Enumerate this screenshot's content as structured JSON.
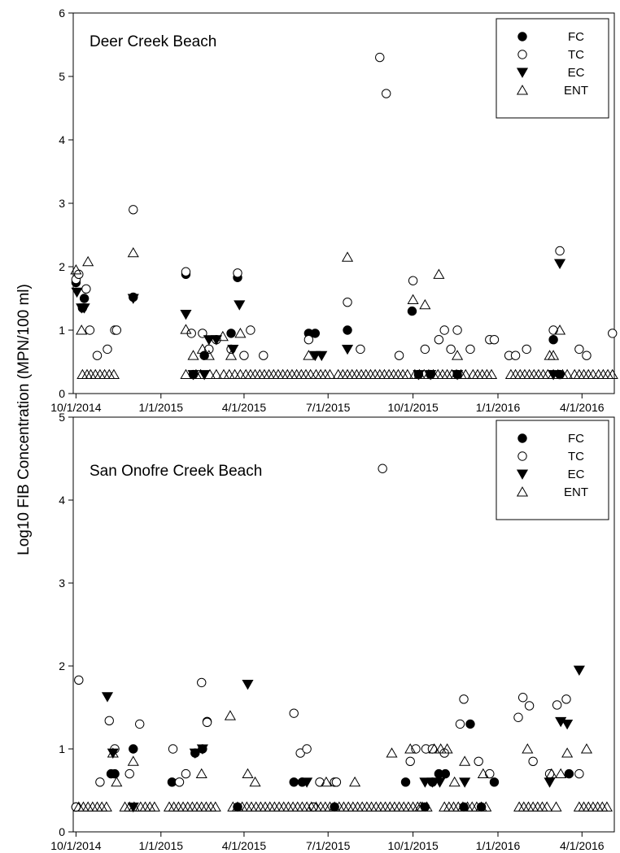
{
  "figure": {
    "ylabel": "Log10 FIB Concentration (MPN/100 ml)"
  },
  "chart_data": [
    {
      "type": "scatter",
      "title": "Deer Creek Beach",
      "xlabel": "",
      "ylabel": "Log10 FIB Concentration (MPN/100 ml)",
      "xlim": [
        "2014-09-28",
        "2016-05-06"
      ],
      "ylim": [
        0,
        6
      ],
      "x_ticks": [
        "10/1/2014",
        "1/1/2015",
        "4/1/2015",
        "7/1/2015",
        "10/1/2015",
        "1/1/2016",
        "4/1/2016"
      ],
      "y_ticks": [
        0,
        1,
        2,
        3,
        4,
        5,
        6
      ],
      "legend_position": "top-right",
      "series": [
        {
          "name": "FC",
          "marker": "filled-circle",
          "x": [
            "2014-10-01",
            "2014-10-08",
            "2014-10-10",
            "2014-12-02",
            "2015-01-28",
            "2015-02-05",
            "2015-02-17",
            "2015-03-18",
            "2015-03-25",
            "2015-06-10",
            "2015-06-17",
            "2015-07-22",
            "2015-09-30",
            "2015-10-07",
            "2015-10-20",
            "2015-11-18",
            "2016-03-01",
            "2016-03-08"
          ],
          "y": [
            1.75,
            1.35,
            1.5,
            1.52,
            1.88,
            0.3,
            0.6,
            0.95,
            1.83,
            0.95,
            0.95,
            1.0,
            1.3,
            0.3,
            0.3,
            0.3,
            0.85,
            0.3
          ]
        },
        {
          "name": "TC",
          "marker": "open-circle",
          "x": [
            "2014-10-01",
            "2014-10-04",
            "2014-10-12",
            "2014-10-16",
            "2014-10-24",
            "2014-11-04",
            "2014-11-12",
            "2014-11-14",
            "2014-12-02",
            "2015-01-28",
            "2015-02-03",
            "2015-02-15",
            "2015-02-22",
            "2015-03-02",
            "2015-03-18",
            "2015-03-25",
            "2015-04-01",
            "2015-04-08",
            "2015-04-22",
            "2015-06-10",
            "2015-07-22",
            "2015-08-05",
            "2015-08-26",
            "2015-09-02",
            "2015-09-16",
            "2015-10-01",
            "2015-10-14",
            "2015-10-29",
            "2015-11-04",
            "2015-11-11",
            "2015-11-18",
            "2015-12-02",
            "2015-12-23",
            "2015-12-28",
            "2016-01-13",
            "2016-01-20",
            "2016-02-01",
            "2016-03-01",
            "2016-03-08",
            "2016-03-29",
            "2016-04-06",
            "2016-05-04"
          ],
          "y": [
            1.8,
            1.88,
            1.65,
            1.0,
            0.6,
            0.7,
            1.0,
            1.0,
            2.9,
            1.92,
            0.95,
            0.95,
            0.7,
            0.85,
            0.7,
            1.9,
            0.6,
            1.0,
            0.6,
            0.85,
            1.44,
            0.7,
            5.3,
            4.73,
            0.6,
            1.78,
            0.7,
            0.85,
            1.0,
            0.7,
            1.0,
            0.7,
            0.85,
            0.85,
            0.6,
            0.6,
            0.7,
            1.0,
            2.25,
            0.7,
            0.6,
            0.95
          ]
        },
        {
          "name": "EC",
          "marker": "filled-triangle-down",
          "x": [
            "2014-10-02",
            "2014-10-07",
            "2014-10-10",
            "2014-12-02",
            "2015-01-28",
            "2015-02-05",
            "2015-02-17",
            "2015-02-22",
            "2015-03-02",
            "2015-03-20",
            "2015-03-27",
            "2015-06-17",
            "2015-06-24",
            "2015-07-22",
            "2015-10-07",
            "2015-10-20",
            "2015-11-18",
            "2016-03-01",
            "2016-03-08"
          ],
          "y": [
            1.6,
            1.35,
            1.35,
            1.5,
            1.25,
            0.3,
            0.3,
            0.85,
            0.85,
            0.7,
            1.4,
            0.6,
            0.6,
            0.7,
            0.3,
            0.3,
            0.3,
            0.3,
            2.05
          ]
        },
        {
          "name": "ENT",
          "marker": "open-triangle-up",
          "x": [
            "2014-10-01",
            "2014-10-07",
            "2014-10-14",
            "2014-12-02",
            "2015-01-28",
            "2015-02-05",
            "2015-02-15",
            "2015-02-22",
            "2015-03-09",
            "2015-03-18",
            "2015-03-28",
            "2015-06-10",
            "2015-07-22",
            "2015-10-01",
            "2015-10-14",
            "2015-10-29",
            "2015-11-18",
            "2016-02-26",
            "2016-03-01",
            "2016-03-08"
          ],
          "y": [
            1.95,
            1.0,
            2.08,
            2.22,
            1.01,
            0.6,
            0.7,
            0.6,
            0.9,
            0.6,
            0.95,
            0.6,
            2.15,
            1.48,
            1.4,
            1.88,
            0.6,
            0.6,
            0.6,
            1.0
          ]
        },
        {
          "name": "",
          "marker": "open-triangle-up",
          "note": "baseline detection-limit samples (all indicators)",
          "x": [
            "2014-10-08",
            "2014-10-13",
            "2014-10-17",
            "2014-10-22",
            "2014-10-27",
            "2014-11-01",
            "2014-11-06",
            "2014-11-11",
            "2015-01-28",
            "2015-02-08",
            "2015-02-13",
            "2015-02-23",
            "2015-03-02",
            "2015-03-10",
            "2015-03-16",
            "2015-03-22",
            "2015-03-28",
            "2015-04-03",
            "2015-04-08",
            "2015-04-13",
            "2015-04-18",
            "2015-04-23",
            "2015-04-28",
            "2015-05-03",
            "2015-05-08",
            "2015-05-13",
            "2015-05-18",
            "2015-05-23",
            "2015-05-28",
            "2015-06-02",
            "2015-06-07",
            "2015-06-12",
            "2015-06-18",
            "2015-06-23",
            "2015-06-28",
            "2015-07-03",
            "2015-07-12",
            "2015-07-17",
            "2015-07-22",
            "2015-07-27",
            "2015-08-01",
            "2015-08-06",
            "2015-08-11",
            "2015-08-16",
            "2015-08-21",
            "2015-08-26",
            "2015-08-31",
            "2015-09-05",
            "2015-09-10",
            "2015-09-15",
            "2015-09-20",
            "2015-09-25",
            "2015-10-03",
            "2015-10-08",
            "2015-10-13",
            "2015-10-18",
            "2015-10-23",
            "2015-10-28",
            "2015-11-02",
            "2015-11-07",
            "2015-11-12",
            "2015-11-17",
            "2015-11-22",
            "2015-11-27",
            "2015-12-05",
            "2015-12-10",
            "2015-12-15",
            "2015-12-20",
            "2015-12-25",
            "2016-01-15",
            "2016-01-20",
            "2016-01-25",
            "2016-01-30",
            "2016-02-04",
            "2016-02-09",
            "2016-02-14",
            "2016-02-19",
            "2016-02-24",
            "2016-03-01",
            "2016-03-06",
            "2016-03-11",
            "2016-03-16",
            "2016-03-24",
            "2016-03-29",
            "2016-04-03",
            "2016-04-08",
            "2016-04-13",
            "2016-04-19",
            "2016-04-24",
            "2016-04-29",
            "2016-05-04"
          ],
          "y": [
            0.3,
            0.3,
            0.3,
            0.3,
            0.3,
            0.3,
            0.3,
            0.3,
            0.3,
            0.3,
            0.3,
            0.3,
            0.3,
            0.3,
            0.3,
            0.3,
            0.3,
            0.3,
            0.3,
            0.3,
            0.3,
            0.3,
            0.3,
            0.3,
            0.3,
            0.3,
            0.3,
            0.3,
            0.3,
            0.3,
            0.3,
            0.3,
            0.3,
            0.3,
            0.3,
            0.3,
            0.3,
            0.3,
            0.3,
            0.3,
            0.3,
            0.3,
            0.3,
            0.3,
            0.3,
            0.3,
            0.3,
            0.3,
            0.3,
            0.3,
            0.3,
            0.3,
            0.3,
            0.3,
            0.3,
            0.3,
            0.3,
            0.3,
            0.3,
            0.3,
            0.3,
            0.3,
            0.3,
            0.3,
            0.3,
            0.3,
            0.3,
            0.3,
            0.3,
            0.3,
            0.3,
            0.3,
            0.3,
            0.3,
            0.3,
            0.3,
            0.3,
            0.3,
            0.3,
            0.3,
            0.3,
            0.3,
            0.3,
            0.3,
            0.3,
            0.3,
            0.3,
            0.3,
            0.3,
            0.3,
            0.3
          ]
        }
      ]
    },
    {
      "type": "scatter",
      "title": "San Onofre Creek Beach",
      "xlabel": "",
      "ylabel": "Log10 FIB Concentration (MPN/100 ml)",
      "xlim": [
        "2014-09-28",
        "2016-05-06"
      ],
      "ylim": [
        0,
        5
      ],
      "x_ticks": [
        "10/1/2014",
        "1/1/2015",
        "4/1/2015",
        "7/1/2015",
        "10/1/2015",
        "1/1/2016",
        "4/1/2016"
      ],
      "y_ticks": [
        0,
        1,
        2,
        3,
        4,
        5
      ],
      "legend_position": "top-right",
      "series": [
        {
          "name": "FC",
          "marker": "filled-circle",
          "x": [
            "2014-10-01",
            "2014-11-08",
            "2014-11-12",
            "2014-12-02",
            "2015-01-13",
            "2015-02-07",
            "2015-02-15",
            "2015-02-20",
            "2015-03-25",
            "2015-05-25",
            "2015-06-03",
            "2015-07-08",
            "2015-09-23",
            "2015-10-14",
            "2015-10-22",
            "2015-10-29",
            "2015-11-05",
            "2015-11-25",
            "2015-12-02",
            "2015-12-14",
            "2015-12-28",
            "2016-03-18"
          ],
          "y": [
            0.3,
            0.7,
            0.7,
            1.0,
            0.6,
            0.95,
            1.0,
            1.33,
            0.3,
            0.6,
            0.6,
            0.3,
            0.6,
            0.3,
            0.6,
            0.7,
            0.7,
            0.3,
            1.3,
            0.3,
            0.6,
            0.7
          ]
        },
        {
          "name": "TC",
          "marker": "open-circle",
          "x": [
            "2014-10-01",
            "2014-10-04",
            "2014-10-27",
            "2014-11-06",
            "2014-11-12",
            "2014-11-28",
            "2014-12-09",
            "2015-01-14",
            "2015-01-21",
            "2015-01-28",
            "2015-02-14",
            "2015-02-20",
            "2015-05-25",
            "2015-06-01",
            "2015-06-08",
            "2015-06-15",
            "2015-06-22",
            "2015-07-08",
            "2015-07-10",
            "2015-08-29",
            "2015-09-28",
            "2015-10-04",
            "2015-10-15",
            "2015-10-22",
            "2015-11-04",
            "2015-11-21",
            "2015-11-25",
            "2015-12-11",
            "2015-12-23",
            "2016-01-23",
            "2016-01-28",
            "2016-02-04",
            "2016-02-08",
            "2016-02-26",
            "2016-03-05",
            "2016-03-15",
            "2016-03-29"
          ],
          "y": [
            0.3,
            1.83,
            0.6,
            1.34,
            1.0,
            0.7,
            1.3,
            1.0,
            0.6,
            0.7,
            1.8,
            1.32,
            1.43,
            0.95,
            1.0,
            0.3,
            0.6,
            0.6,
            0.6,
            4.38,
            0.85,
            1.0,
            1.0,
            1.0,
            0.95,
            1.3,
            1.6,
            0.85,
            0.7,
            1.38,
            1.62,
            1.52,
            0.85,
            0.7,
            1.53,
            1.6,
            0.7
          ]
        },
        {
          "name": "EC",
          "marker": "filled-triangle-down",
          "x": [
            "2014-11-04",
            "2014-11-10",
            "2014-12-02",
            "2015-02-07",
            "2015-02-15",
            "2015-04-05",
            "2015-06-08",
            "2015-10-14",
            "2015-10-22",
            "2015-10-30",
            "2015-11-26",
            "2016-02-26",
            "2016-03-09",
            "2016-03-16",
            "2016-03-29"
          ],
          "y": [
            1.63,
            0.95,
            0.3,
            0.95,
            1.0,
            1.78,
            0.6,
            0.6,
            0.6,
            0.6,
            0.6,
            0.6,
            1.33,
            1.3,
            1.95
          ]
        },
        {
          "name": "ENT",
          "marker": "open-triangle-up",
          "x": [
            "2014-11-10",
            "2014-11-14",
            "2014-12-02",
            "2015-02-14",
            "2015-03-17",
            "2015-04-05",
            "2015-04-13",
            "2015-06-29",
            "2015-07-30",
            "2015-09-08",
            "2015-09-28",
            "2015-10-09",
            "2015-10-24",
            "2015-10-31",
            "2015-11-07",
            "2015-11-15",
            "2015-11-26",
            "2015-12-16",
            "2016-02-02",
            "2016-02-28",
            "2016-03-09",
            "2016-03-16",
            "2016-04-06"
          ],
          "y": [
            0.95,
            0.6,
            0.85,
            0.7,
            1.4,
            0.7,
            0.6,
            0.6,
            0.6,
            0.95,
            1.0,
            0.3,
            1.0,
            1.0,
            1.0,
            0.6,
            0.85,
            0.7,
            1.0,
            0.7,
            0.7,
            0.95,
            1.0
          ]
        },
        {
          "name": "",
          "marker": "open-triangle-up",
          "note": "baseline detection-limit samples (all indicators)",
          "x": [
            "2014-10-04",
            "2014-10-09",
            "2014-10-14",
            "2014-10-19",
            "2014-10-24",
            "2014-10-29",
            "2014-11-03",
            "2014-11-23",
            "2014-11-28",
            "2014-12-03",
            "2014-12-10",
            "2014-12-15",
            "2014-12-20",
            "2014-12-25",
            "2015-01-10",
            "2015-01-15",
            "2015-01-20",
            "2015-01-25",
            "2015-01-30",
            "2015-02-04",
            "2015-02-09",
            "2015-02-14",
            "2015-02-19",
            "2015-02-24",
            "2015-03-01",
            "2015-03-20",
            "2015-03-25",
            "2015-03-30",
            "2015-04-04",
            "2015-04-09",
            "2015-04-14",
            "2015-04-19",
            "2015-04-24",
            "2015-04-29",
            "2015-05-04",
            "2015-05-09",
            "2015-05-14",
            "2015-05-19",
            "2015-05-24",
            "2015-05-29",
            "2015-06-03",
            "2015-06-08",
            "2015-06-13",
            "2015-06-18",
            "2015-06-23",
            "2015-06-28",
            "2015-07-03",
            "2015-07-08",
            "2015-07-13",
            "2015-07-18",
            "2015-07-23",
            "2015-07-28",
            "2015-08-02",
            "2015-08-07",
            "2015-08-12",
            "2015-08-17",
            "2015-08-22",
            "2015-08-27",
            "2015-09-01",
            "2015-09-06",
            "2015-09-11",
            "2015-09-16",
            "2015-09-21",
            "2015-09-26",
            "2015-10-01",
            "2015-10-06",
            "2015-10-11",
            "2015-10-16",
            "2015-11-04",
            "2015-11-09",
            "2015-11-14",
            "2015-11-19",
            "2015-11-24",
            "2015-11-29",
            "2015-12-04",
            "2015-12-09",
            "2015-12-14",
            "2015-12-19",
            "2016-01-24",
            "2016-01-29",
            "2016-02-03",
            "2016-02-08",
            "2016-02-13",
            "2016-02-18",
            "2016-02-23",
            "2016-03-04",
            "2016-03-29",
            "2016-04-03",
            "2016-04-08",
            "2016-04-13",
            "2016-04-18",
            "2016-04-23",
            "2016-04-28"
          ],
          "y": [
            0.3,
            0.3,
            0.3,
            0.3,
            0.3,
            0.3,
            0.3,
            0.3,
            0.3,
            0.3,
            0.3,
            0.3,
            0.3,
            0.3,
            0.3,
            0.3,
            0.3,
            0.3,
            0.3,
            0.3,
            0.3,
            0.3,
            0.3,
            0.3,
            0.3,
            0.3,
            0.3,
            0.3,
            0.3,
            0.3,
            0.3,
            0.3,
            0.3,
            0.3,
            0.3,
            0.3,
            0.3,
            0.3,
            0.3,
            0.3,
            0.3,
            0.3,
            0.3,
            0.3,
            0.3,
            0.3,
            0.3,
            0.3,
            0.3,
            0.3,
            0.3,
            0.3,
            0.3,
            0.3,
            0.3,
            0.3,
            0.3,
            0.3,
            0.3,
            0.3,
            0.3,
            0.3,
            0.3,
            0.3,
            0.3,
            0.3,
            0.3,
            0.3,
            0.3,
            0.3,
            0.3,
            0.3,
            0.3,
            0.3,
            0.3,
            0.3,
            0.3,
            0.3,
            0.3,
            0.3,
            0.3,
            0.3,
            0.3,
            0.3,
            0.3,
            0.3,
            0.3,
            0.3,
            0.3,
            0.3,
            0.3,
            0.3,
            0.3
          ]
        }
      ]
    }
  ]
}
